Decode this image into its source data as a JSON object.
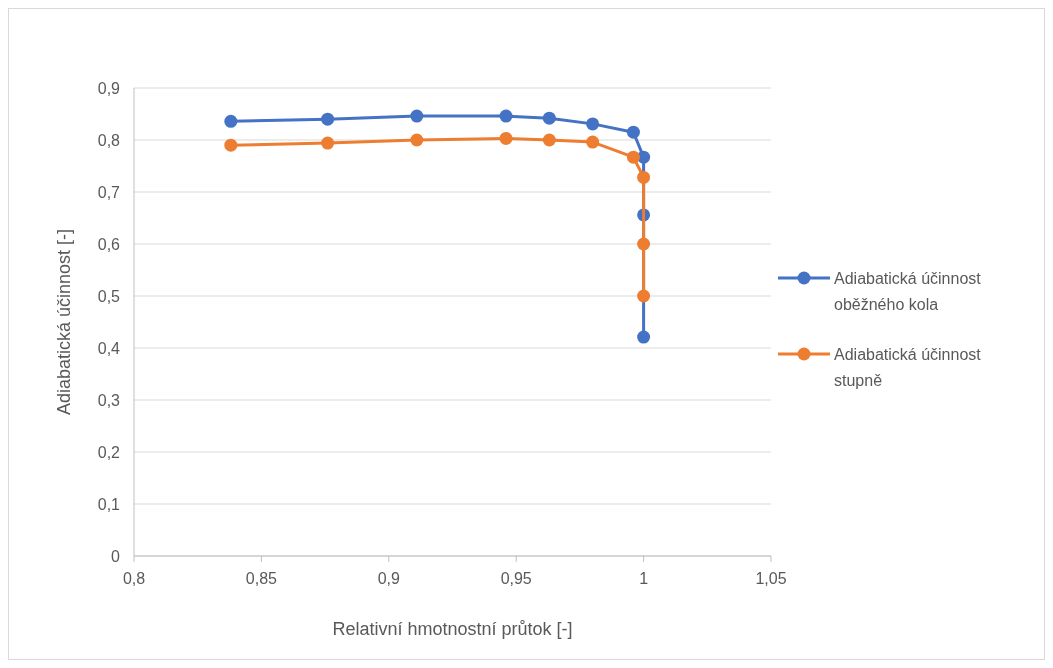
{
  "chart_data": {
    "type": "line",
    "xlabel": "Relativní hmotnostní průtok [-]",
    "ylabel": "Adiabatická účinnost [-]",
    "xlim": [
      0.8,
      1.05
    ],
    "xticks": [
      {
        "value": 0.8,
        "label": "0,8"
      },
      {
        "value": 0.85,
        "label": "0,85"
      },
      {
        "value": 0.9,
        "label": "0,9"
      },
      {
        "value": 0.95,
        "label": "0,95"
      },
      {
        "value": 1,
        "label": "1"
      },
      {
        "value": 1.05,
        "label": "1,05"
      }
    ],
    "ylim": [
      0,
      0.9
    ],
    "yticks": [
      {
        "value": 0,
        "label": "0"
      },
      {
        "value": 0.1,
        "label": "0,1"
      },
      {
        "value": 0.2,
        "label": "0,2"
      },
      {
        "value": 0.3,
        "label": "0,3"
      },
      {
        "value": 0.4,
        "label": "0,4"
      },
      {
        "value": 0.5,
        "label": "0,5"
      },
      {
        "value": 0.6,
        "label": "0,6"
      },
      {
        "value": 0.7,
        "label": "0,7"
      },
      {
        "value": 0.8,
        "label": "0,8"
      },
      {
        "value": 0.9,
        "label": "0,9"
      }
    ],
    "grid": "y",
    "legend": "right",
    "marker": "circle",
    "line_style": "solid",
    "series": [
      {
        "name": "Adiabatická účinnost oběžného kola",
        "color": "#4472c4",
        "x": [
          0.838,
          0.876,
          0.911,
          0.946,
          0.963,
          0.98,
          0.996,
          1.0,
          1.0,
          1.0
        ],
        "values": [
          0.836,
          0.84,
          0.846,
          0.846,
          0.842,
          0.831,
          0.815,
          0.767,
          0.656,
          0.421
        ]
      },
      {
        "name": "Adiabatická účinnost stupně",
        "color": "#ed7d31",
        "x": [
          0.838,
          0.876,
          0.911,
          0.946,
          0.963,
          0.98,
          0.996,
          1.0,
          1.0,
          1.0
        ],
        "values": [
          0.79,
          0.794,
          0.8,
          0.803,
          0.8,
          0.796,
          0.767,
          0.728,
          0.6,
          0.5
        ]
      }
    ]
  }
}
